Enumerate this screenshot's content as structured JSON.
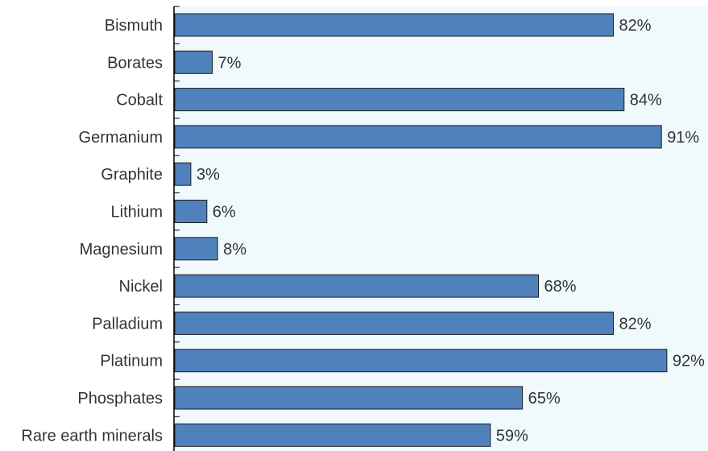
{
  "chart_data": {
    "type": "bar",
    "orientation": "horizontal",
    "categories": [
      "Bismuth",
      "Borates",
      "Cobalt",
      "Germanium",
      "Graphite",
      "Lithium",
      "Magnesium",
      "Nickel",
      "Palladium",
      "Platinum",
      "Phosphates",
      "Rare earth minerals"
    ],
    "values": [
      82,
      7,
      84,
      91,
      3,
      6,
      8,
      68,
      82,
      92,
      65,
      59
    ],
    "value_labels": [
      "82%",
      "7%",
      "84%",
      "91%",
      "3%",
      "6%",
      "8%",
      "68%",
      "82%",
      "92%",
      "65%",
      "59%"
    ],
    "xlim": [
      0,
      100
    ],
    "title": "",
    "xlabel": "",
    "ylabel": "",
    "grid": false,
    "legend": "none",
    "colors": {
      "bar_fill": "#4f81bd",
      "bar_stroke": "#1f1f1f",
      "plot_background": "#f0fafd",
      "axis": "#000000",
      "text": "#333333"
    }
  }
}
